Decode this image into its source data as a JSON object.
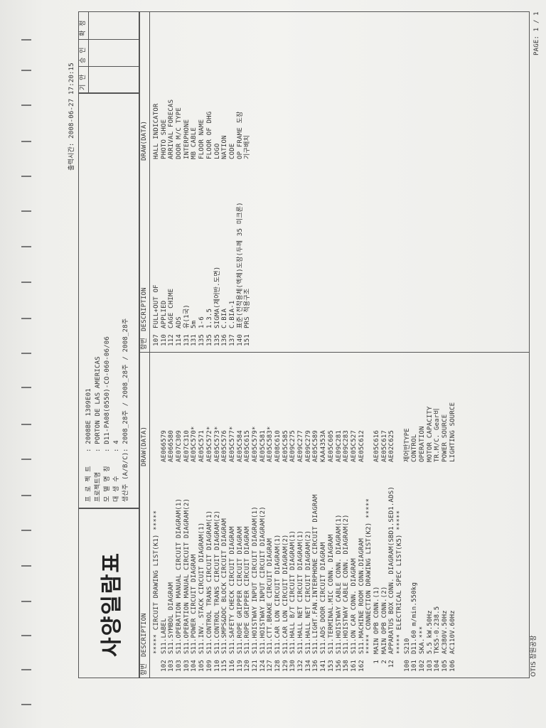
{
  "title": "사양일람표",
  "print_time": "출력시간: 2008-06-27 17:20:15",
  "approval": {
    "cols": [
      "기 안",
      "승 인",
      "확 정"
    ]
  },
  "info": {
    "labels": [
      "프 로 젝 트",
      "프로젝트명",
      "모 델 명 칭",
      "대  생  수",
      "생산주 (A/B/C)"
    ],
    "values": [
      ": 2008BE 1309E01",
      ": PORTON DE LAS AMERICAS",
      ": D11-PA08(0550)-CO-060-06/06",
      ": 4",
      ": 2008_28주 / 2008_28주 / 2008_28주"
    ]
  },
  "headers": {
    "no": "항번",
    "desc": "DESCRIPTION",
    "draw": "DRAW(DATA)"
  },
  "left_rows": [
    {
      "no": "",
      "desc": "***** CIRCUIT DRAWING LIST(K1) *****",
      "draw": ""
    },
    {
      "no": "102",
      "desc": "S11.LABEL",
      "draw": "AE066579"
    },
    {
      "no": "103",
      "desc": "S11.SYMBOL DIAGRAM",
      "draw": "AE066580"
    },
    {
      "no": "103",
      "desc": "S11.OPERATION MANUAL CIRCUIT DIAGRAM(1)",
      "draw": "AE07C309"
    },
    {
      "no": "103",
      "desc": "S11.OPERATION MANUAL CIRCUIT DIAGRAM(2)",
      "draw": "AE07C310"
    },
    {
      "no": "104",
      "desc": "S11.POWER CIRCUIT DIAGRAM",
      "draw": "AE05C570*"
    },
    {
      "no": "105",
      "desc": "S11.INV. STACK CIRCUIT DIAGRAM(1)",
      "draw": "AE05C571"
    },
    {
      "no": "109",
      "desc": "S11.CONTROL TRANS CIRCUIT DIAGRAM(1)",
      "draw": "AE05C572*"
    },
    {
      "no": "110",
      "desc": "S11.CONTROL TRANS CIRCUIT DIAGRAM(2)",
      "draw": "AE05C573*"
    },
    {
      "no": "115",
      "desc": "S11.SMPS&DOC BLOCK CIRCUIT DIAGRAM",
      "draw": "AE05C576"
    },
    {
      "no": "116",
      "desc": "S11.SAFETY CHECK CIRCUIT DIAGRAM",
      "draw": "AE05C577*"
    },
    {
      "no": "119",
      "desc": "S11.ROPE GRIPPER CIRCUIT DIAGRAM",
      "draw": "AE05C584"
    },
    {
      "no": "120",
      "desc": "S11.ROPE GRIPPER CIRCUIT DIAGRAM",
      "draw": "AE05C615"
    },
    {
      "no": "121",
      "desc": "S11.HOISTWAY INPUT CIRCUIT DIAGRAM(1)",
      "draw": "AE05C579*"
    },
    {
      "no": "124",
      "desc": "S11.HOISTWAY INPUT CIRCUIT DIAGRAM(2)",
      "draw": "AE05C581"
    },
    {
      "no": "127",
      "desc": "S11.CTT.BRAKE CIRCUIT DIAGRAM",
      "draw": "AE05C583*"
    },
    {
      "no": "128",
      "desc": "S11.CAR LON CIRCUIT DIAGRAM(1)",
      "draw": "AE08C610"
    },
    {
      "no": "129",
      "desc": "S11.CAR LON CIRCUIT DIAGRAM(2)",
      "draw": "AE05C585"
    },
    {
      "no": "130",
      "desc": "S11.HALL B/T CIRCUIT DIAGRAM(1)",
      "draw": "AE09C275"
    },
    {
      "no": "132",
      "desc": "S11.HALL NET CIRCUIT DIAGRAM(1)",
      "draw": "AE09C277"
    },
    {
      "no": "134",
      "desc": "S11.HALL NET CIRCUIT DIAGRAM(2)",
      "draw": "AE09C279"
    },
    {
      "no": "136",
      "desc": "S11.LIGHT.FAN.INTERPHONE CIRCUIT DIAGRAM",
      "draw": "AE05C589"
    },
    {
      "no": "141",
      "desc": "S11.ADS DOOR CIRCUIT DIAGRAM",
      "draw": "KAA4353A"
    },
    {
      "no": "153",
      "desc": "S11.TERMINAL.MIC CONN. DIAGRAM",
      "draw": "AE05C605"
    },
    {
      "no": "156",
      "desc": "S11.HOISTWAY CABLE CONN. DIAGRAM(1)",
      "draw": "AE09C281"
    },
    {
      "no": "158",
      "desc": "S11.HOISTWAY CABLE CONN. DIAGRAM(2)",
      "draw": "AE09C283"
    },
    {
      "no": "161",
      "desc": "S11.ON CAR CONN. DIAGRAM",
      "draw": "AE05C527"
    },
    {
      "no": "162",
      "desc": "S11.MACHINE ROOM CONN.DIAGRAM",
      "draw": "AE05C612"
    },
    {
      "no": "",
      "desc": "***** CONNECTION DRAWING LIST(K2) *****",
      "draw": ""
    },
    {
      "no": "1",
      "desc": "MAIN OPB CONN.(1)",
      "draw": "AE05C616"
    },
    {
      "no": "2",
      "desc": "MAIN OPB CONN.(2)",
      "draw": "AE05C617"
    },
    {
      "no": "12",
      "desc": "APPARATUS BOX CONN. DIAGRAM(SBD1.SED1.ADS)",
      "draw": "AE02C625"
    },
    {
      "no": "",
      "desc": "***** ELECTRICAL SPEC LIST(K5) *****",
      "draw": ""
    },
    {
      "no": "100",
      "desc": "S210",
      "draw": "제어반TYPE"
    },
    {
      "no": "101",
      "desc": "D11.60 m/min.550kg",
      "draw": "CONTROL"
    },
    {
      "no": "102",
      "desc": "SKA.***",
      "draw": "OPERATION"
    },
    {
      "no": "103",
      "desc": "5.5 kW.50Hz",
      "draw": "MOTOR CAPACITY"
    },
    {
      "no": "104",
      "desc": "TKS5-0.238.5",
      "draw": "TR.M/C. Gear비"
    },
    {
      "no": "105",
      "desc": "AC380V.50Hz",
      "draw": "POWER SOURCE"
    },
    {
      "no": "106",
      "desc": "AC110V.60Hz",
      "draw": "LIGHTING SOURCE"
    }
  ],
  "right_rows": [
    {
      "no": "107",
      "desc": "FULL+OUT OF",
      "draw": "HALL INDICATOR"
    },
    {
      "no": "110",
      "desc": "APPLIED",
      "draw": "PHOTO SHOE"
    },
    {
      "no": "112",
      "desc": "CAGE CHIME",
      "draw": "ARRIVAL FORECAS"
    },
    {
      "no": "114",
      "desc": "ADS",
      "draw": "DOOR M/C TYPE"
    },
    {
      "no": "131",
      "desc": "유(1국)",
      "draw": "INTERPHONE"
    },
    {
      "no": "131",
      "desc": "5m",
      "draw": "MB CABLE"
    },
    {
      "no": "135",
      "desc": "1-6",
      "draw": "FLOOR NAME"
    },
    {
      "no": "135",
      "desc": "1.3.5",
      "draw": "FLOOR OF DHG"
    },
    {
      "no": "135",
      "desc": "SIGMA(제어반.도면)",
      "draw": "LOGO"
    },
    {
      "no": "136",
      "desc": "C.BIA",
      "draw": "NATION"
    },
    {
      "no": "137",
      "desc": "C.BIA-1",
      "draw": "CODE"
    },
    {
      "no": "140",
      "desc": "표준(전착용체(엑체)도장(두께 35 미크론)",
      "draw": "OP FRAME 도장"
    },
    {
      "no": "151",
      "desc": "PRS 적용구조",
      "draw": "기구배치"
    }
  ],
  "footer": {
    "company": "OTIS 창원공장",
    "page": "PAGE:  1 /  1"
  }
}
